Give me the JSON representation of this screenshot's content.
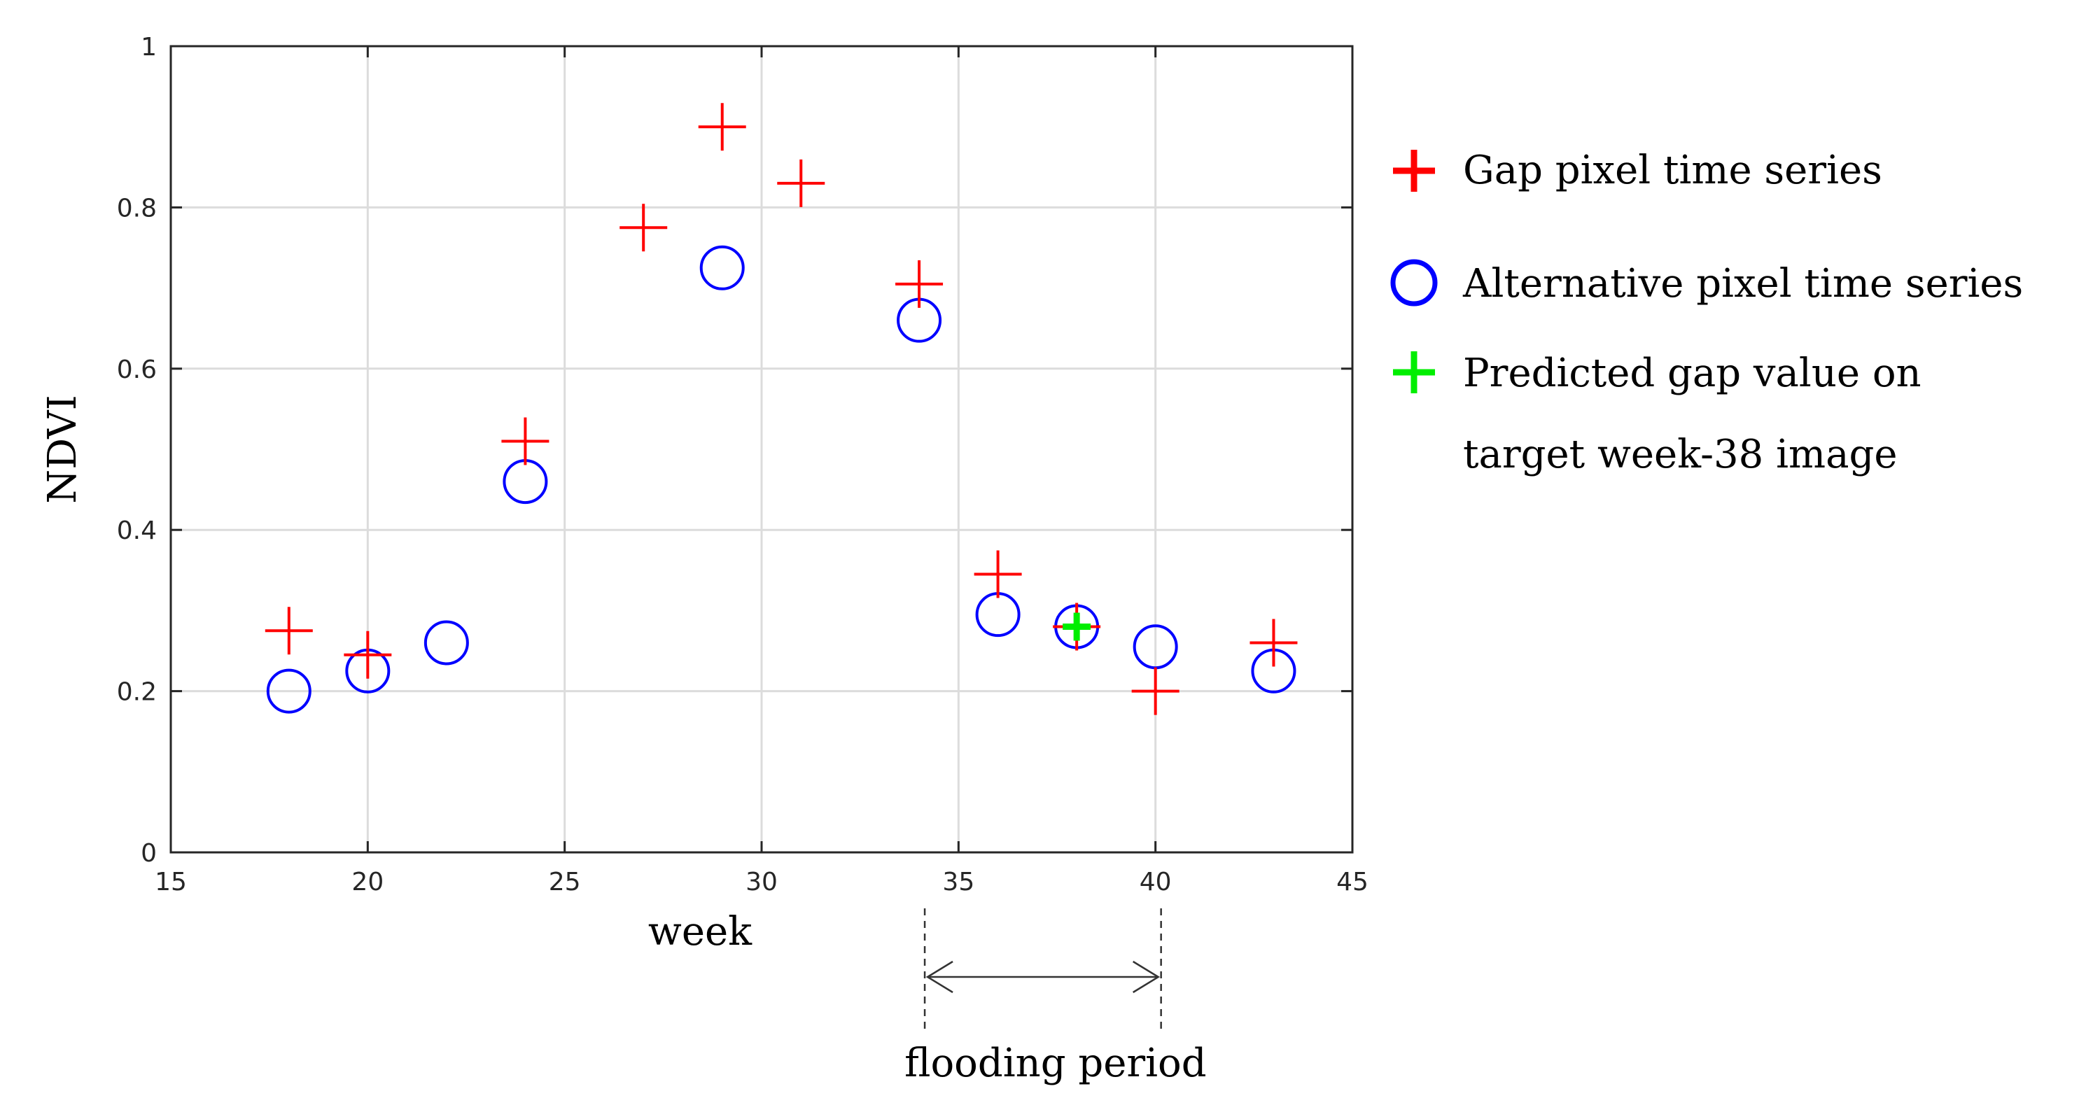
{
  "chart_data": {
    "type": "scatter",
    "title": "",
    "xlabel": "week",
    "ylabel": "NDVI",
    "xlim": [
      15,
      45
    ],
    "ylim": [
      0,
      1
    ],
    "xticks": [
      15,
      20,
      25,
      30,
      35,
      40,
      45
    ],
    "yticks": [
      0,
      0.2,
      0.4,
      0.6,
      0.8,
      1
    ],
    "xtick_labels": [
      "15",
      "20",
      "25",
      "30",
      "35",
      "40",
      "45"
    ],
    "ytick_labels": [
      "0",
      "0.2",
      "0.4",
      "0.6",
      "0.8",
      "1"
    ],
    "grid": true,
    "legend_position": "right",
    "series": [
      {
        "name": "Gap pixel time series",
        "marker": "plus",
        "color": "#ff0000",
        "x": [
          18,
          20,
          24,
          27,
          29,
          31,
          34,
          36,
          38,
          40,
          43
        ],
        "y": [
          0.275,
          0.245,
          0.51,
          0.775,
          0.9,
          0.83,
          0.705,
          0.345,
          0.28,
          0.2,
          0.26
        ]
      },
      {
        "name": "Alternative pixel time series",
        "marker": "circle",
        "color": "#0000ff",
        "x": [
          18,
          20,
          22,
          24,
          29,
          34,
          36,
          38,
          40,
          43
        ],
        "y": [
          0.2,
          0.225,
          0.26,
          0.46,
          0.725,
          0.66,
          0.295,
          0.28,
          0.255,
          0.225
        ]
      },
      {
        "name": "Predicted gap value on target week-38 image",
        "legend_lines": [
          "Predicted gap value on",
          "target week-38 image"
        ],
        "marker": "plus",
        "color": "#00ee00",
        "x": [
          38
        ],
        "y": [
          0.28
        ]
      }
    ],
    "annotations": [
      {
        "type": "range-arrow",
        "from": 34,
        "to": 40,
        "label": "flooding period"
      }
    ]
  }
}
